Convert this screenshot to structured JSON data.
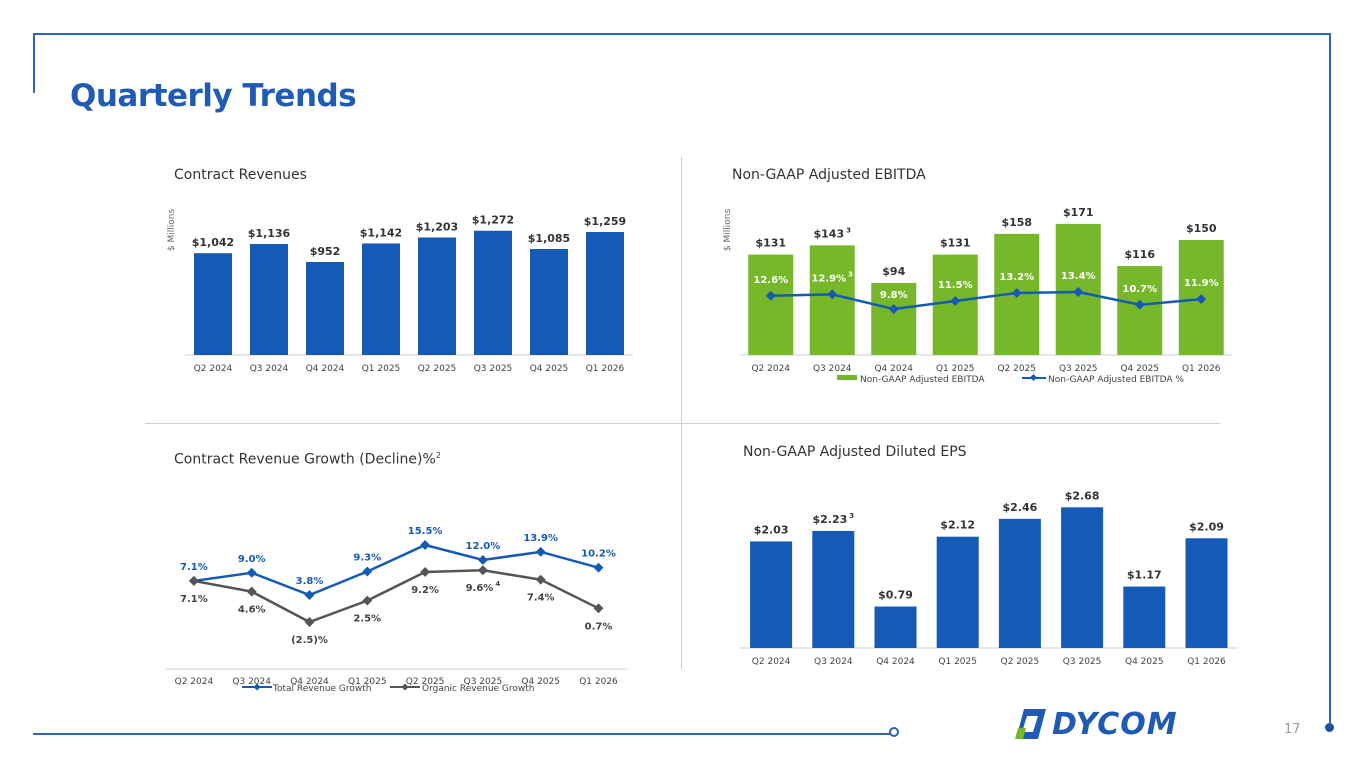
{
  "slide": {
    "title": "Quarterly Trends",
    "page_number": "17",
    "logo_text": "DYCOM",
    "colors": {
      "brand_blue": "#1f5bb5",
      "bar_blue": "#155ab6",
      "bar_green": "#77b82a",
      "line_gray": "#555555"
    }
  },
  "chart_data": [
    {
      "type": "bar",
      "title": "Contract Revenues",
      "ylabel": "$ Millions",
      "categories": [
        "Q2 2024",
        "Q3 2024",
        "Q4 2024",
        "Q1 2025",
        "Q2 2025",
        "Q3 2025",
        "Q4 2025",
        "Q1 2026"
      ],
      "values": [
        1042,
        1136,
        952,
        1142,
        1203,
        1272,
        1085,
        1259
      ],
      "labels": [
        "$1,042",
        "$1,136",
        "$952",
        "$1,142",
        "$1,203",
        "$1,272",
        "$1,085",
        "$1,259"
      ],
      "ylim": [
        0,
        1300
      ]
    },
    {
      "type": "bar",
      "title": "Non-GAAP Adjusted EBITDA",
      "ylabel": "$ Millions",
      "categories": [
        "Q2 2024",
        "Q3 2024",
        "Q4 2024",
        "Q1 2025",
        "Q2 2025",
        "Q3 2025",
        "Q4 2025",
        "Q1 2026"
      ],
      "series": [
        {
          "name": "Non-GAAP Adjusted EBITDA",
          "values": [
            131,
            143,
            94,
            131,
            158,
            171,
            116,
            150
          ],
          "labels": [
            "$131",
            "$143",
            "$94",
            "$131",
            "$158",
            "$171",
            "$116",
            "$150"
          ],
          "footnotes": [
            "",
            "3",
            "",
            "",
            "",
            "",
            "",
            ""
          ]
        },
        {
          "name": "Non-GAAP Adjusted EBITDA %",
          "values": [
            12.6,
            12.9,
            9.8,
            11.5,
            13.2,
            13.4,
            10.7,
            11.9
          ],
          "labels": [
            "12.6%",
            "12.9%",
            "9.8%",
            "11.5%",
            "13.2%",
            "13.4%",
            "10.7%",
            "11.9%"
          ],
          "footnotes": [
            "",
            "3",
            "",
            "",
            "",
            "",
            "",
            ""
          ]
        }
      ],
      "ylim": [
        0,
        180
      ]
    },
    {
      "type": "line",
      "title": "Contract Revenue Growth (Decline)%",
      "title_footnote": "2",
      "categories": [
        "Q2 2024",
        "Q3 2024",
        "Q4 2024",
        "Q1 2025",
        "Q2 2025",
        "Q3 2025",
        "Q4 2025",
        "Q1 2026"
      ],
      "series": [
        {
          "name": "Total Revenue Growth",
          "values": [
            7.1,
            9.0,
            3.8,
            9.3,
            15.5,
            12.0,
            13.9,
            10.2
          ],
          "labels": [
            "7.1%",
            "9.0%",
            "3.8%",
            "9.3%",
            "15.5%",
            "12.0%",
            "13.9%",
            "10.2%"
          ],
          "footnotes": [
            "",
            "",
            "",
            "",
            "",
            "",
            "",
            ""
          ]
        },
        {
          "name": "Organic Revenue Growth",
          "values": [
            7.1,
            4.6,
            -2.5,
            2.5,
            9.2,
            9.6,
            7.4,
            0.7
          ],
          "labels": [
            "7.1%",
            "4.6%",
            "(2.5)%",
            "2.5%",
            "9.2%",
            "9.6%",
            "7.4%",
            "0.7%"
          ],
          "footnotes": [
            "",
            "",
            "",
            "",
            "",
            "4",
            "",
            ""
          ]
        }
      ],
      "ylim": [
        -4,
        18
      ]
    },
    {
      "type": "bar",
      "title": "Non-GAAP Adjusted Diluted EPS",
      "categories": [
        "Q2 2024",
        "Q3 2024",
        "Q4 2024",
        "Q1 2025",
        "Q2 2025",
        "Q3 2025",
        "Q4 2025",
        "Q1 2026"
      ],
      "values": [
        2.03,
        2.23,
        0.79,
        2.12,
        2.46,
        2.68,
        1.17,
        2.09
      ],
      "labels": [
        "$2.03",
        "$2.23",
        "$0.79",
        "$2.12",
        "$2.46",
        "$2.68",
        "$1.17",
        "$2.09"
      ],
      "footnotes": [
        "",
        "3",
        "",
        "",
        "",
        "",
        "",
        ""
      ],
      "ylim": [
        0,
        2.8
      ]
    }
  ]
}
